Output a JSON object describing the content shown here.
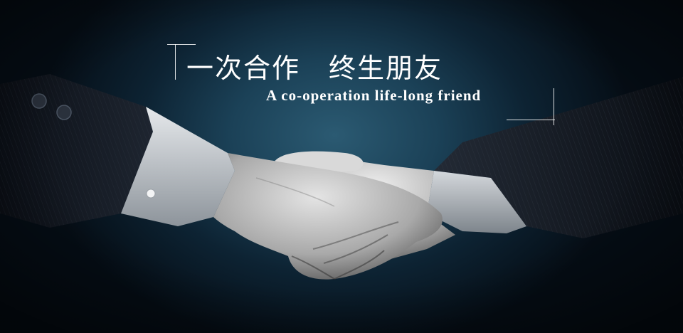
{
  "banner": {
    "headline_part1": "一次合作",
    "headline_part2": "终生朋友",
    "subline": "A co-operation life-long friend"
  },
  "colors": {
    "background_center": "#2b5a72",
    "background_edge": "#050d15",
    "text": "#ffffff",
    "suit": "#151a22",
    "cuff": "#c9cdd1",
    "skin": "#a7a7a7"
  },
  "illustration": {
    "subject": "handshake-icon"
  }
}
